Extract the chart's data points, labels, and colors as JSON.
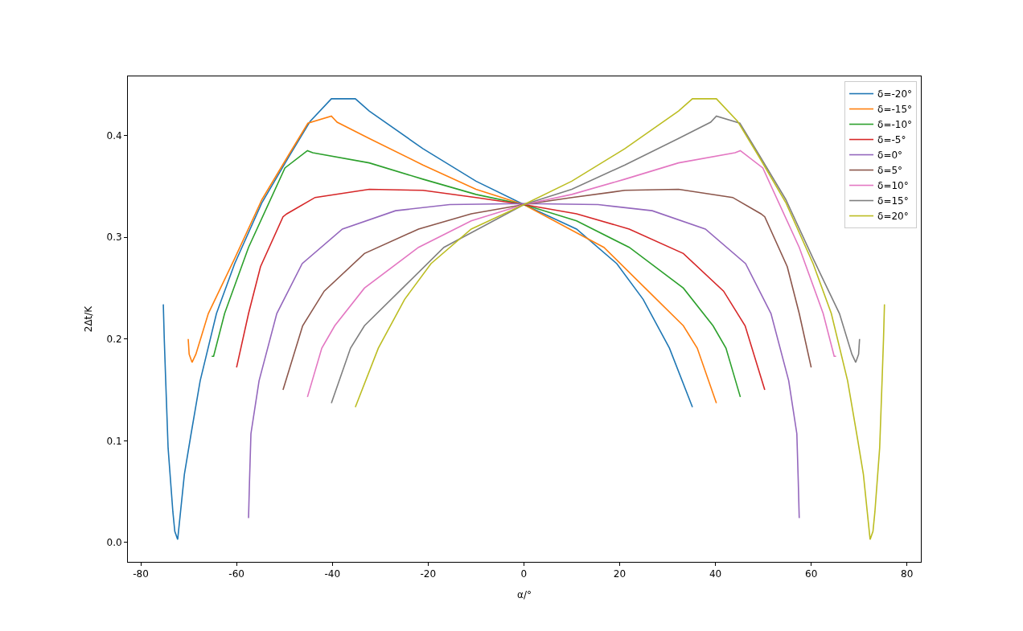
{
  "chart_data": {
    "type": "line",
    "xlabel": "α/°",
    "ylabel": "2Δt/K",
    "xlim": [
      -82.7,
      82.9
    ],
    "xticks": [
      -80,
      -60,
      -40,
      -20,
      0,
      20,
      40,
      60,
      80
    ],
    "ylim": [
      -0.019,
      0.458
    ],
    "yticks": [
      {
        "value": 0,
        "label": "0.0"
      },
      {
        "value": 0.1,
        "label": "0.1"
      },
      {
        "value": 0.2,
        "label": "0.2"
      },
      {
        "value": 0.3,
        "label": "0.3"
      },
      {
        "value": 0.4,
        "label": "0.4"
      }
    ],
    "legend": "top right",
    "marker": "none",
    "line_style": "solid",
    "series": [
      {
        "name": "δ=-20°",
        "color": "#1f77b4",
        "x": [
          -75.3,
          -75.1,
          -74.8,
          -74.3,
          -73.3,
          -72.9,
          -72.3,
          -70.9,
          -69.6,
          -67.6,
          -64.2,
          -60.4,
          -54.7,
          -49.1,
          -44.6,
          -40.2,
          -35.2,
          -32.3,
          -21.1,
          -10.0,
          0,
          11.0,
          19.4,
          24.9,
          30.4,
          35.2
        ],
        "values": [
          0.234,
          0.2,
          0.159,
          0.093,
          0.03,
          0.011,
          0.003,
          0.067,
          0.104,
          0.159,
          0.225,
          0.274,
          0.334,
          0.379,
          0.414,
          0.436,
          0.436,
          0.424,
          0.387,
          0.355,
          0.332,
          0.308,
          0.274,
          0.239,
          0.191,
          0.133
        ]
      },
      {
        "name": "δ=-15°",
        "color": "#ff7f0e",
        "x": [
          -70.1,
          -69.9,
          -69.3,
          -68.5,
          -65.9,
          -60.4,
          -54.7,
          -49.1,
          -45.1,
          -40.2,
          -39.0,
          -32.3,
          -21.1,
          -10.0,
          0,
          16.7,
          24.9,
          33.3,
          36.2,
          40.2
        ],
        "values": [
          0.2,
          0.185,
          0.177,
          0.185,
          0.225,
          0.279,
          0.337,
          0.381,
          0.412,
          0.419,
          0.413,
          0.397,
          0.371,
          0.347,
          0.332,
          0.29,
          0.252,
          0.213,
          0.191,
          0.137
        ]
      },
      {
        "name": "δ=-10°",
        "color": "#2ca02c",
        "x": [
          -65.2,
          -64.8,
          -62.5,
          -57.5,
          -49.9,
          -45.2,
          -44.1,
          -32.3,
          -21.1,
          -10.0,
          0,
          11.0,
          22.0,
          33.3,
          39.5,
          42.2,
          45.2
        ],
        "values": [
          0.183,
          0.183,
          0.225,
          0.29,
          0.368,
          0.385,
          0.383,
          0.373,
          0.357,
          0.342,
          0.332,
          0.316,
          0.29,
          0.25,
          0.213,
          0.191,
          0.143
        ]
      },
      {
        "name": "δ=-5°",
        "color": "#d62728",
        "x": [
          -60.0,
          -57.5,
          -55.0,
          -50.3,
          -49.5,
          -43.6,
          -32.3,
          -21.1,
          -10.0,
          0,
          11.0,
          22.0,
          33.3,
          41.7,
          46.2,
          50.3
        ],
        "values": [
          0.172,
          0.225,
          0.271,
          0.32,
          0.323,
          0.339,
          0.347,
          0.346,
          0.339,
          0.332,
          0.323,
          0.308,
          0.284,
          0.247,
          0.213,
          0.15
        ]
      },
      {
        "name": "δ=0°",
        "color": "#9467bd",
        "x": [
          -57.5,
          -57.3,
          -57.0,
          -55.3,
          -51.6,
          -46.3,
          -37.9,
          -26.8,
          -15.5,
          0,
          15.5,
          26.8,
          37.9,
          46.3,
          51.6,
          55.3,
          57.0,
          57.3,
          57.5
        ],
        "values": [
          0.024,
          0.06,
          0.107,
          0.159,
          0.225,
          0.274,
          0.308,
          0.326,
          0.332,
          0.333,
          0.332,
          0.326,
          0.308,
          0.274,
          0.225,
          0.159,
          0.107,
          0.06,
          0.024
        ]
      },
      {
        "name": "δ=5°",
        "color": "#8c564b",
        "x": [
          -50.3,
          -46.2,
          -41.7,
          -33.3,
          -22.0,
          -11.0,
          0,
          10.0,
          21.1,
          32.3,
          43.6,
          49.5,
          50.3,
          55.0,
          57.5,
          60.0
        ],
        "values": [
          0.15,
          0.213,
          0.247,
          0.284,
          0.308,
          0.323,
          0.332,
          0.339,
          0.346,
          0.347,
          0.339,
          0.323,
          0.32,
          0.271,
          0.225,
          0.172
        ]
      },
      {
        "name": "δ=10°",
        "color": "#e377c2",
        "x": [
          -45.2,
          -42.2,
          -39.5,
          -33.3,
          -22.0,
          -11.0,
          0,
          10.0,
          21.1,
          32.3,
          44.1,
          45.2,
          49.9,
          57.5,
          62.5,
          64.8,
          65.2
        ],
        "values": [
          0.143,
          0.191,
          0.213,
          0.25,
          0.29,
          0.316,
          0.332,
          0.342,
          0.357,
          0.373,
          0.383,
          0.385,
          0.368,
          0.29,
          0.225,
          0.183,
          0.183
        ]
      },
      {
        "name": "δ=15°",
        "color": "#7f7f7f",
        "x": [
          -40.2,
          -36.2,
          -33.3,
          -24.9,
          -16.7,
          0,
          10.0,
          21.1,
          32.3,
          39.0,
          40.2,
          45.1,
          49.1,
          54.7,
          60.4,
          65.9,
          68.5,
          69.3,
          69.9,
          70.1
        ],
        "values": [
          0.137,
          0.191,
          0.213,
          0.252,
          0.29,
          0.332,
          0.347,
          0.371,
          0.397,
          0.413,
          0.419,
          0.412,
          0.381,
          0.337,
          0.279,
          0.225,
          0.185,
          0.177,
          0.185,
          0.2
        ]
      },
      {
        "name": "δ=20°",
        "color": "#bcbd22",
        "x": [
          -35.2,
          -30.4,
          -24.9,
          -19.4,
          -11.0,
          0,
          10.0,
          21.1,
          32.3,
          35.2,
          40.2,
          44.6,
          49.1,
          54.7,
          60.4,
          64.2,
          67.6,
          69.6,
          70.9,
          72.3,
          72.9,
          73.3,
          74.3,
          74.8,
          75.1,
          75.3
        ],
        "values": [
          0.133,
          0.191,
          0.239,
          0.274,
          0.308,
          0.332,
          0.355,
          0.387,
          0.424,
          0.436,
          0.436,
          0.414,
          0.379,
          0.334,
          0.274,
          0.225,
          0.159,
          0.104,
          0.067,
          0.003,
          0.011,
          0.03,
          0.093,
          0.159,
          0.2,
          0.234
        ]
      }
    ]
  }
}
